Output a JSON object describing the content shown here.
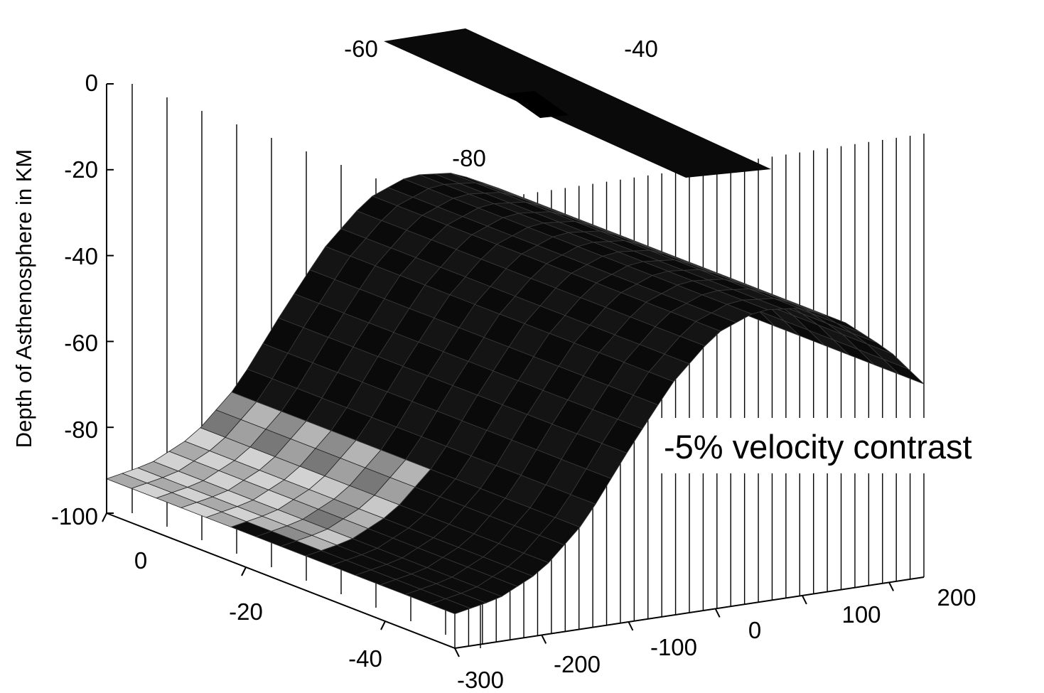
{
  "chart_data": {
    "type": "surface",
    "title": "",
    "zlabel": "Depth of Asthenosphere in KM",
    "annotation": "-5% velocity contrast",
    "z_ticks": [
      "0",
      "-20",
      "-40",
      "-60",
      "-80",
      "-100"
    ],
    "x_ticks": [
      "0",
      "-20",
      "-40"
    ],
    "y_ticks": [
      "-300",
      "-200",
      "-100",
      "0",
      "100",
      "200"
    ],
    "top_ticks": [
      "-60",
      "-40",
      "-80"
    ],
    "xlim": [
      0,
      -50
    ],
    "ylim": [
      -300,
      240
    ],
    "zlim": [
      -100,
      0
    ],
    "grid": true,
    "surfaces": [
      {
        "name": "",
        "description_free": true,
        "depth_profile": {
          "y": [
            -300,
            -250,
            -200,
            -150,
            -100,
            -50,
            0,
            50,
            100,
            150,
            200,
            240
          ],
          "z": [
            -92,
            -90,
            -85,
            -75,
            -60,
            -46,
            -36,
            -32,
            -33,
            -38,
            -46,
            -55
          ]
        }
      },
      {
        "name": "",
        "depth_profile": {
          "y": [
            -300,
            240
          ],
          "z": [
            0,
            0
          ]
        }
      }
    ]
  }
}
